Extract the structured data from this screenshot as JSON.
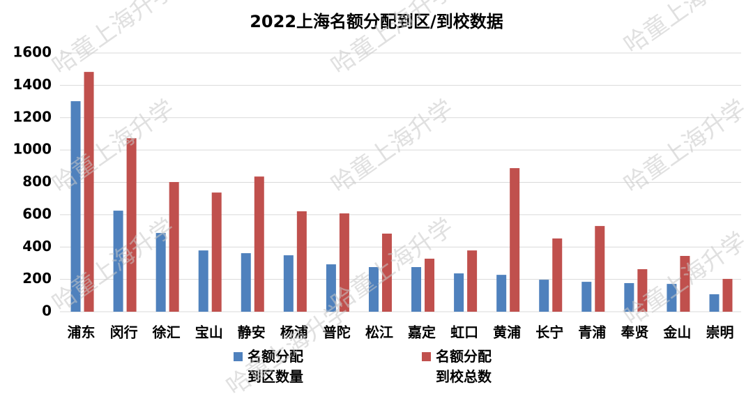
{
  "chart_data": {
    "type": "bar",
    "title": "2022上海名额分配到区/到校数据",
    "watermark": "哈童上海升学",
    "categories": [
      "浦东",
      "闵行",
      "徐汇",
      "宝山",
      "静安",
      "杨浦",
      "普陀",
      "松江",
      "嘉定",
      "虹口",
      "黄浦",
      "长宁",
      "青浦",
      "奉贤",
      "金山",
      "崇明"
    ],
    "series": [
      {
        "name": "名额分配\n到区数量",
        "color": "#4f81bd",
        "values": [
          1302,
          625,
          487,
          379,
          362,
          349,
          293,
          276,
          276,
          237,
          228,
          198,
          185,
          177,
          172,
          108
        ]
      },
      {
        "name": "名额分配\n到校总数",
        "color": "#c0504d",
        "values": [
          1483,
          1073,
          802,
          737,
          836,
          621,
          608,
          483,
          328,
          379,
          888,
          453,
          530,
          263,
          345,
          203
        ]
      }
    ],
    "ylim": [
      0,
      1600
    ],
    "yticks": [
      0,
      200,
      400,
      600,
      800,
      1000,
      1200,
      1400,
      1600
    ],
    "grid": true
  }
}
